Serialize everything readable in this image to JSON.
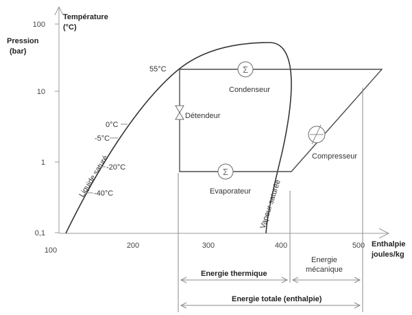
{
  "axes": {
    "y_title_line1": "Pression",
    "y_title_line2": "(bar)",
    "temp_title_line1": "Température",
    "temp_title_line2": "(°C)",
    "x_title_line1": "Enthalpie",
    "x_title_line2": "joules/kg",
    "y_ticks": [
      "100",
      "10",
      "1",
      "0,1"
    ],
    "x_ticks": [
      "100",
      "200",
      "300",
      "400",
      "500"
    ]
  },
  "temperatures": [
    "55°C",
    "0°C",
    "-5°C",
    "-20°C",
    "-40°C"
  ],
  "curves": {
    "liquid": "Liquide saturé",
    "vapor": "Vapeur saturée"
  },
  "components": {
    "condenser": "Condenseur",
    "expansion_valve": "Détendeur",
    "evaporator": "Evaporateur",
    "compressor": "Compresseur"
  },
  "energy": {
    "thermal": "Energie thermique",
    "mechanical_line1": "Energie",
    "mechanical_line2": "mécanique",
    "total": "Energie totale (enthalpie)"
  },
  "icons": [
    "sum-icon",
    "valve-icon",
    "compressor-icon"
  ]
}
